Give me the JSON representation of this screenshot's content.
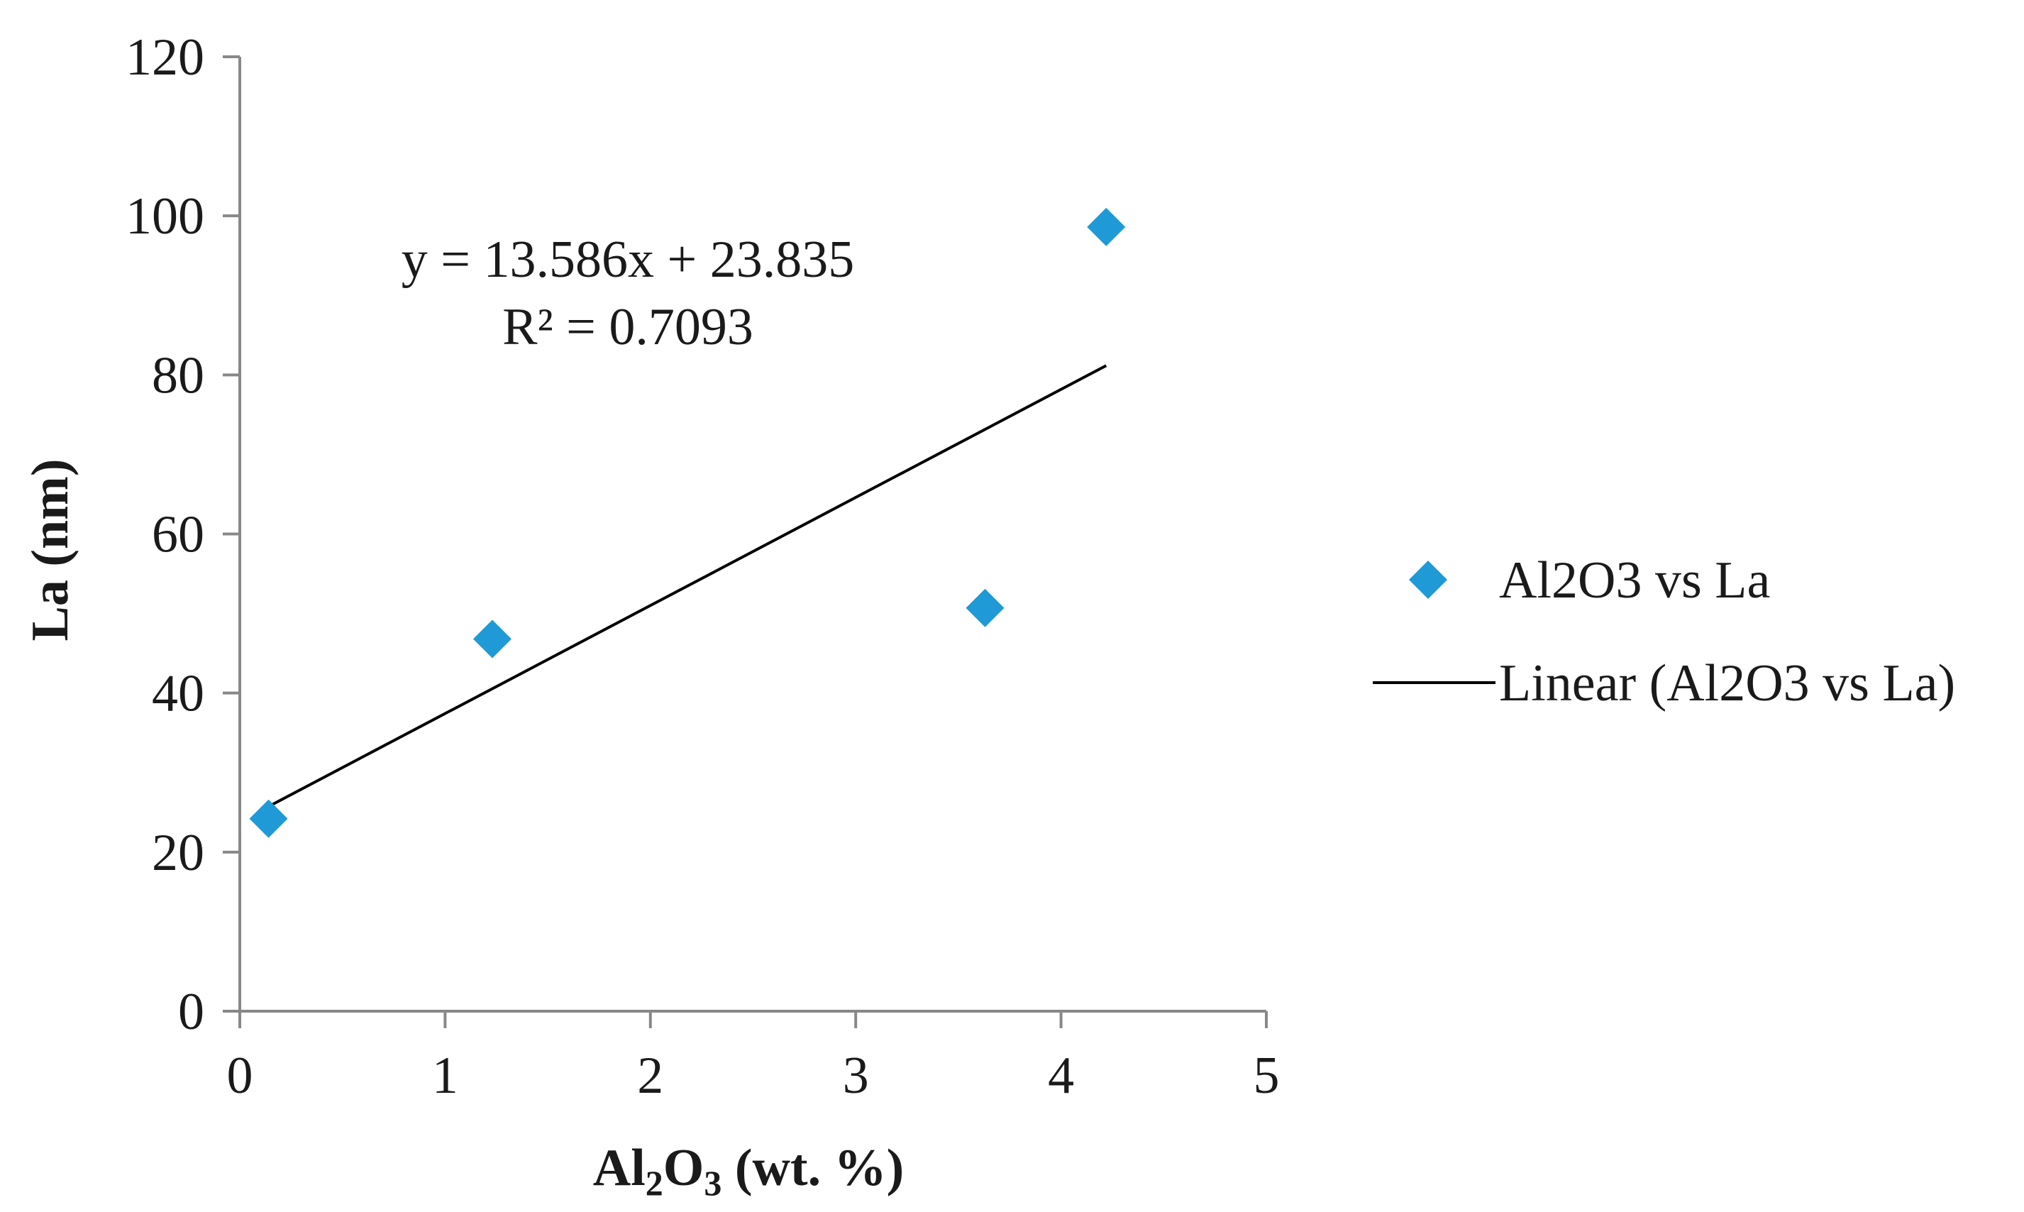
{
  "chart_data": {
    "type": "scatter",
    "title": "",
    "xlabel": {
      "base": "Al",
      "sub1": "2",
      "mid": "O",
      "sub2": "3",
      "rest": " (wt. %)"
    },
    "ylabel": "La (nm)",
    "xlim": [
      0,
      5
    ],
    "ylim": [
      0,
      120
    ],
    "xticks": [
      0,
      1,
      2,
      3,
      4,
      5
    ],
    "yticks": [
      0,
      20,
      40,
      60,
      80,
      100,
      120
    ],
    "grid": false,
    "legend_position": "right",
    "series": [
      {
        "name": "Al2O3 vs La",
        "marker": "diamond",
        "color": "#1f9ad6",
        "x": [
          0.14,
          1.23,
          3.63,
          4.22
        ],
        "y": [
          24.2,
          46.8,
          50.7,
          98.6
        ]
      }
    ],
    "trendline": {
      "name": "Linear (Al2O3 vs La)",
      "type": "linear",
      "slope": 13.586,
      "intercept": 23.835,
      "x_range": [
        0.14,
        4.22
      ],
      "color": "#000000",
      "equation": "y = 13.586x + 23.835",
      "r_squared": "R² = 0.7093"
    }
  }
}
